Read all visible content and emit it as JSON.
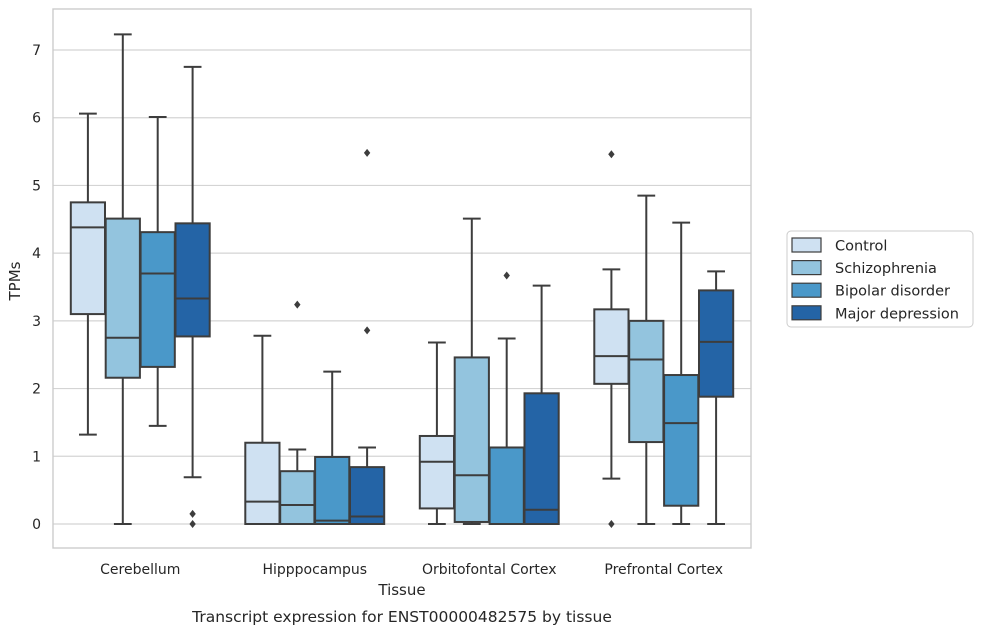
{
  "chart_data": {
    "type": "box",
    "title": "",
    "caption": "Transcript expression for ENST00000482575 by tissue",
    "xlabel": "Tissue",
    "ylabel": "TPMs",
    "ylim": [
      -0.35,
      7.6
    ],
    "yticks": [
      0,
      1,
      2,
      3,
      4,
      5,
      6,
      7
    ],
    "grid": "horizontal",
    "legend_position": "right",
    "categories": [
      "Cerebellum",
      "Hipppocampus",
      "Orbitofontal Cortex",
      "Prefrontal Cortex"
    ],
    "series": [
      {
        "name": "Control",
        "color": "#cfe1f2",
        "boxes": [
          {
            "whislo": 1.32,
            "q1": 3.1,
            "med": 4.38,
            "q3": 4.75,
            "whishi": 6.06,
            "fliers": []
          },
          {
            "whislo": 0.0,
            "q1": 0.0,
            "med": 0.33,
            "q3": 1.2,
            "whishi": 2.78,
            "fliers": []
          },
          {
            "whislo": 0.0,
            "q1": 0.23,
            "med": 0.92,
            "q3": 1.3,
            "whishi": 2.68,
            "fliers": []
          },
          {
            "whislo": 0.67,
            "q1": 2.07,
            "med": 2.48,
            "q3": 3.17,
            "whishi": 3.76,
            "fliers": [
              0.0,
              5.46
            ]
          }
        ]
      },
      {
        "name": "Schizophrenia",
        "color": "#93c4de",
        "boxes": [
          {
            "whislo": 0.0,
            "q1": 2.16,
            "med": 2.75,
            "q3": 4.51,
            "whishi": 7.23,
            "fliers": []
          },
          {
            "whislo": 0.0,
            "q1": 0.0,
            "med": 0.28,
            "q3": 0.78,
            "whishi": 1.1,
            "fliers": [
              3.24
            ]
          },
          {
            "whislo": 0.0,
            "q1": 0.03,
            "med": 0.72,
            "q3": 2.46,
            "whishi": 4.51,
            "fliers": []
          },
          {
            "whislo": 0.0,
            "q1": 1.21,
            "med": 2.43,
            "q3": 3.0,
            "whishi": 4.85,
            "fliers": []
          }
        ]
      },
      {
        "name": "Bipolar disorder",
        "color": "#4a98c9",
        "boxes": [
          {
            "whislo": 1.45,
            "q1": 2.32,
            "med": 3.7,
            "q3": 4.31,
            "whishi": 6.01,
            "fliers": []
          },
          {
            "whislo": 0.0,
            "q1": 0.0,
            "med": 0.05,
            "q3": 0.99,
            "whishi": 2.25,
            "fliers": []
          },
          {
            "whislo": 0.0,
            "q1": 0.0,
            "med": 0.0,
            "q3": 1.13,
            "whishi": 2.74,
            "fliers": [
              3.67
            ]
          },
          {
            "whislo": 0.0,
            "q1": 0.27,
            "med": 1.49,
            "q3": 2.2,
            "whishi": 4.45,
            "fliers": []
          }
        ]
      },
      {
        "name": "Major depression",
        "color": "#2464a6",
        "boxes": [
          {
            "whislo": 0.69,
            "q1": 2.77,
            "med": 3.33,
            "q3": 4.44,
            "whishi": 6.75,
            "fliers": [
              0.0,
              0.15
            ]
          },
          {
            "whislo": 0.0,
            "q1": 0.0,
            "med": 0.11,
            "q3": 0.84,
            "whishi": 1.13,
            "fliers": [
              2.86,
              5.48
            ]
          },
          {
            "whislo": 0.0,
            "q1": 0.0,
            "med": 0.21,
            "q3": 1.93,
            "whishi": 3.52,
            "fliers": []
          },
          {
            "whislo": 0.0,
            "q1": 1.88,
            "med": 2.69,
            "q3": 3.45,
            "whishi": 3.73,
            "fliers": []
          }
        ]
      }
    ]
  }
}
